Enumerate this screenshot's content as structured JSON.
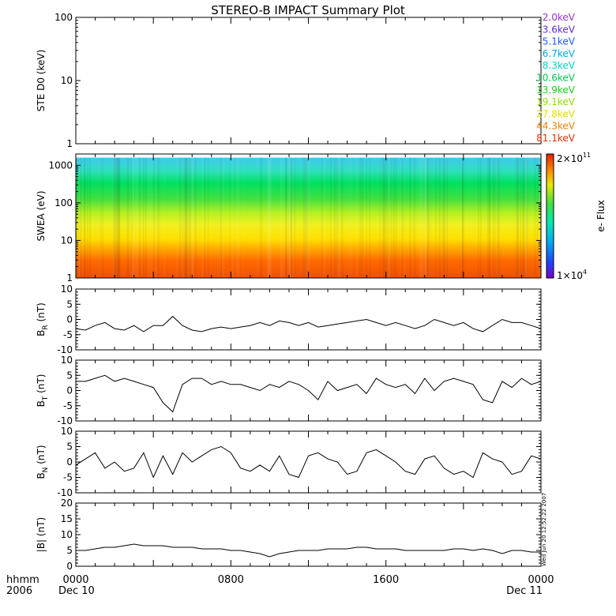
{
  "title": "STEREO-B IMPACT Summary Plot",
  "footer_time_label": "hhmm",
  "footer_year_label": "2006",
  "timestamp": "Wed Jun 20 12:52:22 2007",
  "colors": {
    "axis": "#000000",
    "trace": "#000000"
  },
  "chart_data": [
    {
      "id": "ste",
      "type": "line",
      "ylabel": "STE D0 (keV)",
      "yscale": "log",
      "ylim": [
        1,
        100
      ],
      "yticks": [
        1,
        10,
        100
      ],
      "ytick_labels": [
        "1",
        "10",
        "100"
      ],
      "xlim": [
        0,
        24
      ],
      "series": [],
      "legend": {
        "placement": "right",
        "entries": [
          {
            "label": "2.0keV",
            "color": "#9d30d8"
          },
          {
            "label": "3.6keV",
            "color": "#5a2ad6"
          },
          {
            "label": "5.1keV",
            "color": "#1f5bf0"
          },
          {
            "label": "6.7keV",
            "color": "#00a8e8"
          },
          {
            "label": "8.3keV",
            "color": "#00d8c8"
          },
          {
            "label": "10.6keV",
            "color": "#00c850"
          },
          {
            "label": "13.9keV",
            "color": "#18d018"
          },
          {
            "label": "19.1keV",
            "color": "#8ee000"
          },
          {
            "label": "27.8keV",
            "color": "#e0e000"
          },
          {
            "label": "44.3keV",
            "color": "#f08000"
          },
          {
            "label": "81.1keV",
            "color": "#e83000"
          }
        ]
      }
    },
    {
      "id": "swea",
      "type": "heatmap",
      "ylabel": "SWEA (eV)",
      "yscale": "log",
      "ylim": [
        1,
        2000
      ],
      "yticks": [
        1,
        10,
        100,
        1000
      ],
      "ytick_labels": [
        "1",
        "10",
        "100",
        "1000"
      ],
      "xlim": [
        0,
        24
      ],
      "colorbar": {
        "label": "e- Flux",
        "min_label": "1×10",
        "min_exp": "4",
        "max_label": "2×10",
        "max_exp": "11"
      },
      "energy_color_bands": [
        {
          "e": 1,
          "color": "#f05000"
        },
        {
          "e": 3,
          "color": "#ff6a00"
        },
        {
          "e": 6,
          "color": "#ffa500"
        },
        {
          "e": 12,
          "color": "#ffe000"
        },
        {
          "e": 30,
          "color": "#f0f020"
        },
        {
          "e": 60,
          "color": "#b8f020"
        },
        {
          "e": 150,
          "color": "#40e040"
        },
        {
          "e": 400,
          "color": "#00e060"
        },
        {
          "e": 900,
          "color": "#30e0c0"
        },
        {
          "e": 2000,
          "color": "#40c8f0"
        }
      ]
    },
    {
      "id": "br",
      "type": "line",
      "ylabel": "BR (nT)",
      "ylabel_main": "B",
      "ylabel_sub": "R",
      "ylabel_rest": " (nT)",
      "ylim": [
        -10,
        10
      ],
      "yticks": [
        -10,
        -5,
        0,
        5,
        10
      ],
      "ytick_labels": [
        "-10",
        "-5",
        "0",
        "5",
        "10"
      ],
      "xlim": [
        0,
        24
      ],
      "x": [
        0,
        0.5,
        1,
        1.5,
        2,
        2.5,
        3,
        3.5,
        4,
        4.5,
        5,
        5.5,
        6,
        6.5,
        7,
        7.5,
        8,
        8.5,
        9,
        9.5,
        10,
        10.5,
        11,
        11.5,
        12,
        12.5,
        13,
        13.5,
        14,
        14.5,
        15,
        15.5,
        16,
        16.5,
        17,
        17.5,
        18,
        18.5,
        19,
        19.5,
        20,
        20.5,
        21,
        21.5,
        22,
        22.5,
        23,
        23.5,
        24
      ],
      "values": [
        -3,
        -3.5,
        -2,
        -1,
        -3,
        -3.5,
        -2,
        -4,
        -2,
        -2,
        1,
        -2,
        -3.5,
        -4,
        -3,
        -2.5,
        -3,
        -2.5,
        -2,
        -1,
        -2,
        -0.5,
        -1,
        -2,
        -1,
        -2.5,
        -2,
        -1.5,
        -1,
        -0.5,
        0,
        -1,
        -2,
        -1,
        -2,
        -3,
        -2,
        0,
        -1,
        -2,
        -1,
        -3,
        -4,
        -2,
        0,
        -1,
        -1,
        -2,
        -3
      ]
    },
    {
      "id": "bt",
      "type": "line",
      "ylabel": "BT (nT)",
      "ylabel_main": "B",
      "ylabel_sub": "T",
      "ylabel_rest": " (nT)",
      "ylim": [
        -10,
        10
      ],
      "yticks": [
        -10,
        -5,
        0,
        5,
        10
      ],
      "ytick_labels": [
        "-10",
        "-5",
        "0",
        "5",
        "10"
      ],
      "xlim": [
        0,
        24
      ],
      "x": [
        0,
        0.5,
        1,
        1.5,
        2,
        2.5,
        3,
        3.5,
        4,
        4.5,
        5,
        5.5,
        6,
        6.5,
        7,
        7.5,
        8,
        8.5,
        9,
        9.5,
        10,
        10.5,
        11,
        11.5,
        12,
        12.5,
        13,
        13.5,
        14,
        14.5,
        15,
        15.5,
        16,
        16.5,
        17,
        17.5,
        18,
        18.5,
        19,
        19.5,
        20,
        20.5,
        21,
        21.5,
        22,
        22.5,
        23,
        23.5,
        24
      ],
      "values": [
        3,
        3,
        4,
        5,
        3,
        4,
        3,
        2,
        1,
        -4,
        -7,
        2,
        4,
        4,
        2,
        3,
        2,
        2,
        1,
        0,
        2,
        1,
        3,
        2,
        0,
        -3,
        3,
        0,
        1,
        2,
        -1,
        4,
        2,
        1,
        2,
        -1,
        4,
        0,
        3,
        4,
        3,
        2,
        -3,
        -4,
        3,
        1,
        4,
        2,
        3
      ]
    },
    {
      "id": "bn",
      "type": "line",
      "ylabel": "BN (nT)",
      "ylabel_main": "B",
      "ylabel_sub": "N",
      "ylabel_rest": " (nT)",
      "ylim": [
        -10,
        10
      ],
      "yticks": [
        -10,
        -5,
        0,
        5,
        10
      ],
      "ytick_labels": [
        "-10",
        "-5",
        "0",
        "5",
        "10"
      ],
      "xlim": [
        0,
        24
      ],
      "x": [
        0,
        0.5,
        1,
        1.5,
        2,
        2.5,
        3,
        3.5,
        4,
        4.5,
        5,
        5.5,
        6,
        6.5,
        7,
        7.5,
        8,
        8.5,
        9,
        9.5,
        10,
        10.5,
        11,
        11.5,
        12,
        12.5,
        13,
        13.5,
        14,
        14.5,
        15,
        15.5,
        16,
        16.5,
        17,
        17.5,
        18,
        18.5,
        19,
        19.5,
        20,
        20.5,
        21,
        21.5,
        22,
        22.5,
        23,
        23.5,
        24
      ],
      "values": [
        -1,
        1,
        3,
        -2,
        0,
        -3,
        -2,
        3,
        -5,
        2,
        -4,
        3,
        0,
        2,
        4,
        5,
        3,
        -2,
        -3,
        -1,
        -3,
        2,
        -4,
        -5,
        2,
        3,
        1,
        0,
        -4,
        -3,
        3,
        4,
        2,
        0,
        -3,
        -4,
        1,
        2,
        -2,
        -4,
        -3,
        -5,
        3,
        1,
        0,
        -4,
        -3,
        2,
        1
      ]
    },
    {
      "id": "bmag",
      "type": "line",
      "ylabel": "|B| (nT)",
      "ylim": [
        0,
        20
      ],
      "yticks": [
        0,
        5,
        10,
        15,
        20
      ],
      "ytick_labels": [
        "0",
        "5",
        "10",
        "15",
        "20"
      ],
      "xlim": [
        0,
        24
      ],
      "xticks": [
        0,
        8,
        16,
        24
      ],
      "xtick_labels": [
        "0000",
        "0800",
        "1600",
        "0000"
      ],
      "date_labels": [
        {
          "x": 0,
          "label": "Dec 10"
        },
        {
          "x": 24,
          "label": "Dec 11"
        }
      ],
      "x": [
        0,
        0.5,
        1,
        1.5,
        2,
        2.5,
        3,
        3.5,
        4,
        4.5,
        5,
        5.5,
        6,
        6.5,
        7,
        7.5,
        8,
        8.5,
        9,
        9.5,
        10,
        10.5,
        11,
        11.5,
        12,
        12.5,
        13,
        13.5,
        14,
        14.5,
        15,
        15.5,
        16,
        16.5,
        17,
        17.5,
        18,
        18.5,
        19,
        19.5,
        20,
        20.5,
        21,
        21.5,
        22,
        22.5,
        23,
        23.5,
        24
      ],
      "values": [
        5,
        5,
        5.5,
        6,
        6,
        6.5,
        7,
        6.5,
        6.5,
        6.5,
        6,
        6,
        6,
        5.5,
        5.5,
        5.5,
        5,
        5,
        4.5,
        4,
        3,
        4,
        4.5,
        5,
        5,
        5,
        5.5,
        5.5,
        5.5,
        6,
        6,
        5.5,
        5.5,
        5.5,
        5,
        5,
        5,
        5,
        5,
        5.5,
        5.5,
        5,
        5.5,
        5,
        4,
        5,
        5,
        4.5,
        4.5
      ]
    }
  ]
}
